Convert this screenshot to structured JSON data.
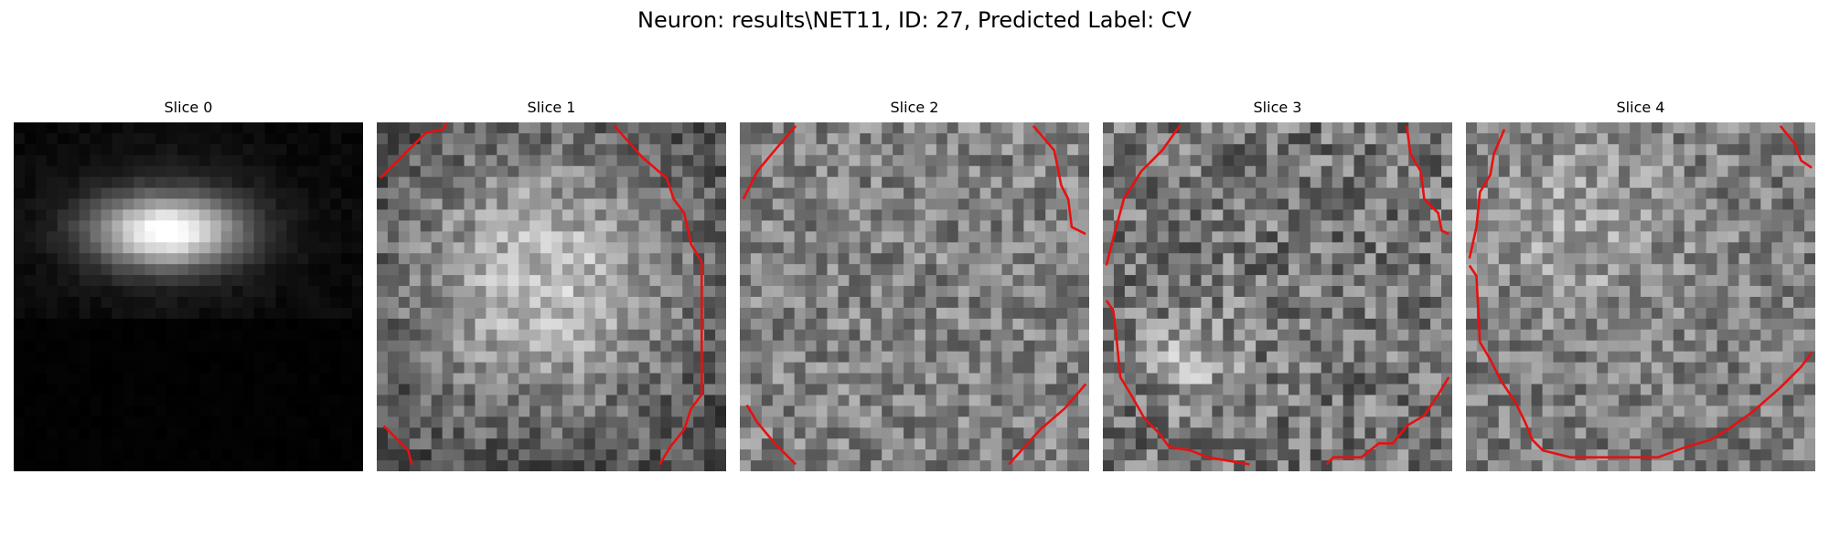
{
  "figure": {
    "title": "Neuron: results\\NET11, ID: 27, Predicted Label: CV"
  },
  "panels": [
    {
      "title": "Slice 0"
    },
    {
      "title": "Slice 1"
    },
    {
      "title": "Slice 2"
    },
    {
      "title": "Slice 3"
    },
    {
      "title": "Slice 4"
    }
  ],
  "contour_color": "#e81010"
}
